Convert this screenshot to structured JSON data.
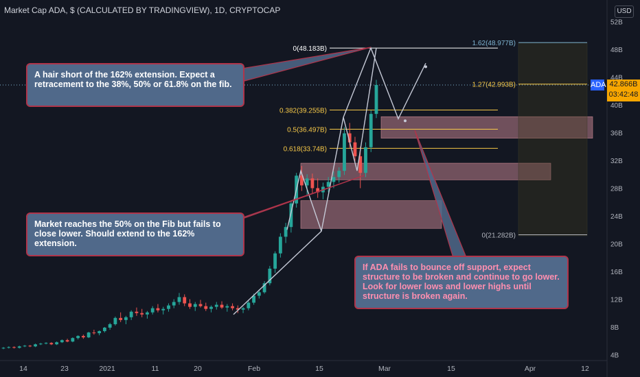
{
  "header": {
    "title": "Market Cap ADA, $ (CALCULATED BY TRADINGVIEW), 1D, CRYPTOCAP"
  },
  "currency": "USD",
  "current": {
    "symbol": "ADA",
    "price": "42.866B",
    "countdown": "03:42:48",
    "value": 42.866
  },
  "annotations": {
    "top": "A hair short of the 162% extension. Expect a retracement to the 38%, 50% or 61.8% on the fib.",
    "middle": "Market reaches the 50% on the Fib but fails to close lower. Should extend to the 162% extension.",
    "bottom": "If ADA fails to bounce off support, expect structure to be broken and continue to go lower. Look for lower lows and lower highs until structure is broken again."
  },
  "colors": {
    "background": "#131722",
    "up": "#26a69a",
    "down": "#ef5350",
    "fib": "#f7c948",
    "extension": "#7fb4d1"
  },
  "chart_data": {
    "type": "candlestick",
    "title": "Market Cap ADA, $ (CALCULATED BY TRADINGVIEW), 1D, CRYPTOCAP",
    "unit": "B USD",
    "x_ticks": [
      "14",
      "23",
      "2021",
      "11",
      "20",
      "Feb",
      "15",
      "Mar",
      "15",
      "Apr",
      "12"
    ],
    "y_ticks": [
      "4B",
      "8B",
      "12B",
      "16B",
      "20B",
      "24B",
      "28B",
      "32B",
      "36B",
      "40B",
      "44B",
      "48B",
      "52B"
    ],
    "ylim": [
      3.5,
      53.5
    ],
    "fib_levels": [
      {
        "label": "0(48.183B)",
        "value": 48.183
      },
      {
        "label": "0.382(39.255B)",
        "value": 39.255
      },
      {
        "label": "0.5(36.497B)",
        "value": 36.497
      },
      {
        "label": "0.618(33.74B)",
        "value": 33.74
      }
    ],
    "extension_levels": [
      {
        "label": "1.62(48.977B)",
        "value": 48.977
      },
      {
        "label": "1.27(42.993B)",
        "value": 42.993
      },
      {
        "label": "0(21.282B)",
        "value": 21.282
      }
    ],
    "zones": [
      {
        "low": 35.2,
        "high": 38.3
      },
      {
        "low": 29.2,
        "high": 31.6
      },
      {
        "low": 22.2,
        "high": 26.2
      }
    ],
    "candles": [
      [
        4.9,
        5.1,
        4.8,
        5.0
      ],
      [
        5.0,
        5.2,
        4.9,
        5.1
      ],
      [
        5.1,
        5.2,
        4.9,
        5.0
      ],
      [
        5.0,
        5.3,
        4.9,
        5.2
      ],
      [
        5.2,
        5.4,
        5.1,
        5.3
      ],
      [
        5.3,
        5.4,
        5.1,
        5.2
      ],
      [
        5.2,
        5.6,
        5.1,
        5.5
      ],
      [
        5.5,
        5.7,
        5.4,
        5.6
      ],
      [
        5.6,
        5.8,
        5.5,
        5.7
      ],
      [
        5.7,
        5.8,
        5.4,
        5.5
      ],
      [
        5.5,
        5.9,
        5.4,
        5.8
      ],
      [
        5.8,
        6.2,
        5.7,
        6.1
      ],
      [
        6.1,
        6.3,
        5.8,
        5.9
      ],
      [
        5.9,
        6.5,
        5.8,
        6.4
      ],
      [
        6.4,
        6.8,
        6.2,
        6.7
      ],
      [
        6.7,
        6.9,
        6.3,
        6.5
      ],
      [
        6.5,
        7.3,
        6.4,
        7.2
      ],
      [
        7.2,
        7.6,
        6.9,
        7.1
      ],
      [
        7.1,
        7.5,
        6.8,
        7.4
      ],
      [
        7.4,
        8.0,
        7.2,
        7.9
      ],
      [
        7.9,
        8.6,
        7.6,
        8.4
      ],
      [
        8.4,
        9.5,
        8.2,
        9.3
      ],
      [
        9.3,
        10.1,
        8.7,
        9.0
      ],
      [
        9.0,
        9.6,
        8.4,
        9.4
      ],
      [
        9.4,
        10.4,
        9.0,
        10.2
      ],
      [
        10.2,
        10.8,
        9.6,
        10.0
      ],
      [
        10.0,
        10.6,
        9.4,
        9.8
      ],
      [
        9.8,
        10.3,
        9.2,
        10.1
      ],
      [
        10.1,
        11.0,
        9.8,
        10.7
      ],
      [
        10.7,
        11.3,
        10.1,
        10.4
      ],
      [
        10.4,
        10.9,
        9.8,
        10.6
      ],
      [
        10.6,
        11.4,
        10.2,
        11.1
      ],
      [
        11.1,
        12.0,
        10.7,
        11.6
      ],
      [
        11.6,
        12.9,
        11.2,
        12.3
      ],
      [
        12.3,
        12.7,
        11.0,
        11.4
      ],
      [
        11.4,
        12.0,
        10.6,
        10.9
      ],
      [
        10.9,
        11.6,
        10.3,
        11.3
      ],
      [
        11.3,
        11.9,
        10.8,
        11.0
      ],
      [
        11.0,
        11.5,
        10.3,
        10.6
      ],
      [
        10.6,
        11.1,
        10.1,
        10.9
      ],
      [
        10.9,
        11.6,
        10.5,
        11.2
      ],
      [
        11.2,
        11.7,
        10.6,
        10.8
      ],
      [
        10.8,
        11.3,
        10.2,
        11.0
      ],
      [
        11.0,
        11.4,
        10.4,
        10.7
      ],
      [
        10.7,
        11.1,
        10.0,
        10.5
      ],
      [
        10.5,
        10.9,
        10.0,
        10.7
      ],
      [
        10.7,
        11.8,
        10.4,
        11.5
      ],
      [
        11.5,
        12.8,
        11.2,
        12.5
      ],
      [
        12.5,
        13.4,
        12.1,
        13.0
      ],
      [
        13.0,
        14.6,
        12.8,
        14.3
      ],
      [
        14.3,
        16.8,
        14.0,
        16.4
      ],
      [
        16.4,
        18.9,
        15.8,
        18.6
      ],
      [
        18.6,
        21.5,
        18.0,
        21.0
      ],
      [
        21.0,
        23.0,
        20.1,
        22.4
      ],
      [
        22.4,
        26.2,
        21.6,
        25.8
      ],
      [
        25.8,
        30.2,
        25.2,
        29.8
      ],
      [
        29.8,
        31.2,
        27.6,
        28.4
      ],
      [
        28.4,
        30.0,
        26.8,
        29.4
      ],
      [
        29.4,
        30.1,
        27.2,
        28.0
      ],
      [
        28.0,
        29.4,
        26.6,
        27.4
      ],
      [
        27.4,
        28.8,
        26.4,
        28.2
      ],
      [
        28.2,
        29.6,
        27.4,
        28.9
      ],
      [
        28.9,
        30.4,
        28.0,
        29.6
      ],
      [
        29.6,
        31.0,
        28.8,
        30.5
      ],
      [
        30.5,
        36.8,
        29.9,
        35.9
      ],
      [
        35.9,
        37.4,
        33.8,
        34.6
      ],
      [
        34.6,
        35.4,
        31.8,
        32.6
      ],
      [
        32.6,
        34.0,
        28.0,
        30.2
      ],
      [
        30.2,
        34.6,
        29.6,
        33.9
      ],
      [
        33.9,
        39.2,
        33.2,
        38.7
      ],
      [
        38.7,
        43.6,
        38.1,
        42.866
      ]
    ]
  }
}
